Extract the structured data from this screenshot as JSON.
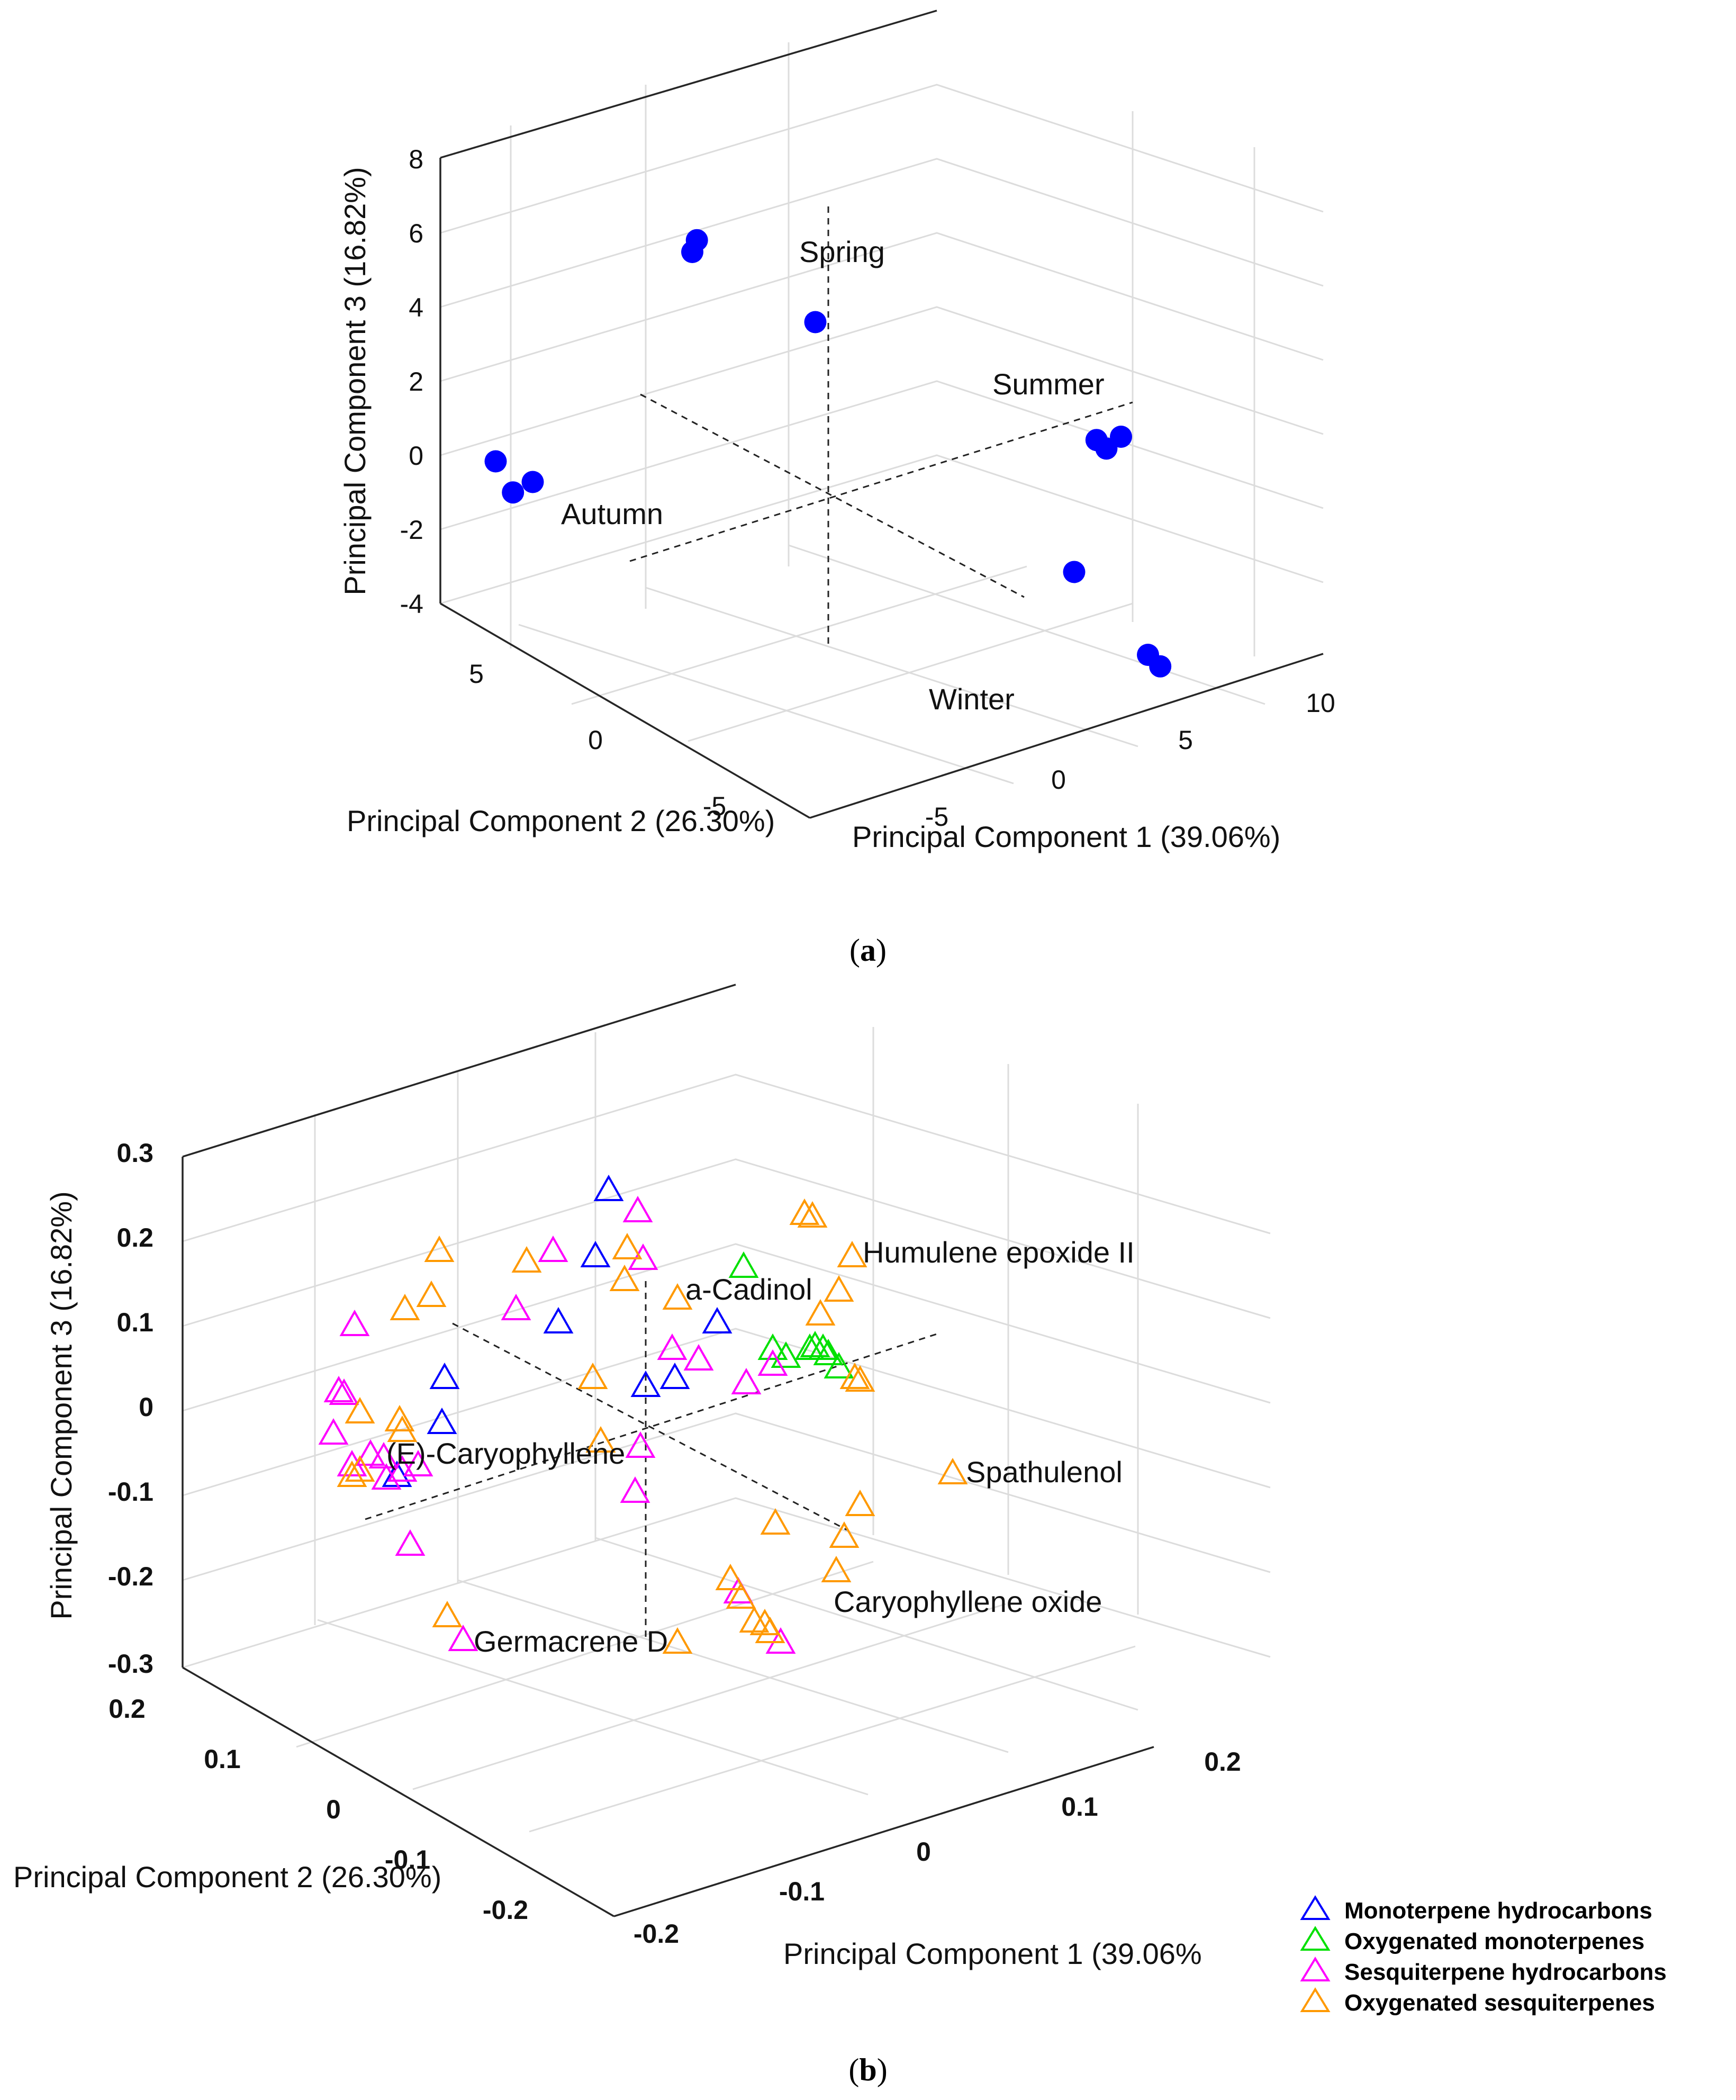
{
  "chart_data": [
    {
      "type": "scatter",
      "panel": "a",
      "caption": "(a)",
      "xlabel": "Principal Component 1 (39.06%)",
      "ylabel": "Principal Component 2 (26.30%)",
      "zlabel": "Principal Component 3 (16.82%)",
      "xticks": [
        "-5",
        "0",
        "5",
        "10"
      ],
      "yticks": [
        "-5",
        "0",
        "5"
      ],
      "zticks": [
        "8",
        "6",
        "4",
        "2",
        "0",
        "-2",
        "-4"
      ],
      "marker_color": "#0000ff",
      "groups": [
        {
          "name": "Spring",
          "pc1": [
            -1.5,
            -0.8,
            1.0
          ],
          "pc2": [
            4.0,
            4.5,
            1.5
          ],
          "pc3": [
            5.5,
            5.5,
            4.0
          ]
        },
        {
          "name": "Summer",
          "pc1": [
            10.2,
            10.4,
            11.0
          ],
          "pc2": [
            -0.8,
            -1.0,
            -1.0
          ],
          "pc3": [
            -0.2,
            -0.4,
            -0.2
          ]
        },
        {
          "name": "Autumn",
          "pc1": [
            -6.0,
            -5.8,
            -5.5
          ],
          "pc2": [
            7.5,
            7.0,
            6.5
          ],
          "pc3": [
            -0.5,
            -1.2,
            -0.8
          ]
        },
        {
          "name": "Winter",
          "pc1": [
            5.5,
            7.0,
            7.3
          ],
          "pc2": [
            -4.5,
            -6.0,
            -6.2
          ],
          "pc3": [
            -1.5,
            -3.5,
            -3.8
          ]
        }
      ]
    },
    {
      "type": "scatter",
      "panel": "b",
      "caption": "(b)",
      "xlabel": "Principal Component 1 (39.06%",
      "ylabel": "Principal Component 2 (26.30%)",
      "zlabel": "Principal Component 3 (16.82%)",
      "xticks": [
        "-0.2",
        "-0.1",
        "0",
        "0.1",
        "0.2"
      ],
      "yticks": [
        "-0.2",
        "-0.1",
        "0",
        "0.1",
        "0.2"
      ],
      "zticks": [
        "0.3",
        "0.2",
        "0.1",
        "0",
        "-0.1",
        "-0.2",
        "-0.3"
      ],
      "annotations": [
        "Humulene epoxide II",
        "a-Cadinol",
        "(E)-Caryophyllene",
        "Spathulenol",
        "Caryophyllene oxide",
        "Germacrene D"
      ],
      "legend": [
        {
          "name": "Monoterpene hydrocarbons",
          "color": "#0000ff"
        },
        {
          "name": "Oxygenated monoterpenes",
          "color": "#00e000"
        },
        {
          "name": "Sesquiterpene hydrocarbons",
          "color": "#ff00ff"
        },
        {
          "name": "Oxygenated sesquiterpenes",
          "color": "#ff9900"
        }
      ],
      "point_counts": {
        "Monoterpene hydrocarbons": 9,
        "Oxygenated monoterpenes": 8,
        "Sesquiterpene hydrocarbons": 22,
        "Oxygenated sesquiterpenes": 32
      }
    }
  ]
}
